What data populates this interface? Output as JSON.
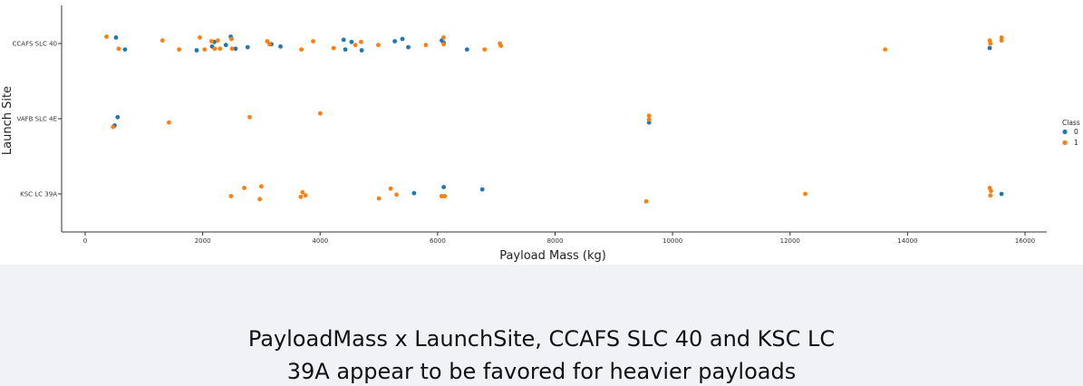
{
  "chart_data": {
    "type": "scatter",
    "xlabel": "Payload Mass (kg)",
    "ylabel": "Launch Site",
    "xlim": [
      -2000,
      16400
    ],
    "x_ticks": [
      "0",
      "2000",
      "4000",
      "6000",
      "8000",
      "10000",
      "12000",
      "14000",
      "16000"
    ],
    "x_tick_values": [
      0,
      2000,
      4000,
      6000,
      8000,
      10000,
      12000,
      14000,
      16000
    ],
    "categories": [
      "CCAFS SLC 40",
      "VAFB SLC 4E",
      "KSC LC 39A"
    ],
    "legend": {
      "title": "Class",
      "placement": "right",
      "entries": [
        {
          "label": "0",
          "color": "#1f77b4"
        },
        {
          "label": "1",
          "color": "#ff7f0e"
        }
      ]
    },
    "grid": false,
    "series": [
      {
        "name": "0",
        "color": "#1f77b4",
        "points": [
          {
            "x": 525,
            "site": "CCAFS SLC 40",
            "jitter": -0.08
          },
          {
            "x": 677,
            "site": "CCAFS SLC 40",
            "jitter": 0.08
          },
          {
            "x": 1898,
            "site": "CCAFS SLC 40",
            "jitter": 0.09
          },
          {
            "x": 2160,
            "site": "CCAFS SLC 40",
            "jitter": 0.04
          },
          {
            "x": 2200,
            "site": "CCAFS SLC 40",
            "jitter": -0.02
          },
          {
            "x": 2395,
            "site": "CCAFS SLC 40",
            "jitter": 0.02
          },
          {
            "x": 2478,
            "site": "CCAFS SLC 40",
            "jitter": -0.09
          },
          {
            "x": 2560,
            "site": "CCAFS SLC 40",
            "jitter": 0.07
          },
          {
            "x": 2765,
            "site": "CCAFS SLC 40",
            "jitter": 0.05
          },
          {
            "x": 3170,
            "site": "CCAFS SLC 40",
            "jitter": 0.01
          },
          {
            "x": 3325,
            "site": "CCAFS SLC 40",
            "jitter": 0.04
          },
          {
            "x": 4400,
            "site": "CCAFS SLC 40",
            "jitter": -0.05
          },
          {
            "x": 4428,
            "site": "CCAFS SLC 40",
            "jitter": 0.08
          },
          {
            "x": 4535,
            "site": "CCAFS SLC 40",
            "jitter": -0.02
          },
          {
            "x": 4707,
            "site": "CCAFS SLC 40",
            "jitter": 0.09
          },
          {
            "x": 5271,
            "site": "CCAFS SLC 40",
            "jitter": -0.03
          },
          {
            "x": 5400,
            "site": "CCAFS SLC 40",
            "jitter": -0.06
          },
          {
            "x": 5500,
            "site": "CCAFS SLC 40",
            "jitter": 0.05
          },
          {
            "x": 6070,
            "site": "CCAFS SLC 40",
            "jitter": -0.04
          },
          {
            "x": 6104,
            "site": "CCAFS SLC 40",
            "jitter": -0.01
          },
          {
            "x": 6500,
            "site": "CCAFS SLC 40",
            "jitter": 0.08
          },
          {
            "x": 15400,
            "site": "CCAFS SLC 40",
            "jitter": 0.06
          },
          {
            "x": 500,
            "site": "VAFB SLC 4E",
            "jitter": 0.09
          },
          {
            "x": 553,
            "site": "VAFB SLC 4E",
            "jitter": -0.02
          },
          {
            "x": 9600,
            "site": "VAFB SLC 4E",
            "jitter": 0.05
          },
          {
            "x": 5600,
            "site": "KSC LC 39A",
            "jitter": -0.01
          },
          {
            "x": 6070,
            "site": "KSC LC 39A",
            "jitter": 0.03
          },
          {
            "x": 6104,
            "site": "KSC LC 39A",
            "jitter": -0.09
          },
          {
            "x": 6761,
            "site": "KSC LC 39A",
            "jitter": -0.06
          },
          {
            "x": 15600,
            "site": "KSC LC 39A",
            "jitter": 0.0
          }
        ]
      },
      {
        "name": "1",
        "color": "#ff7f0e",
        "points": [
          {
            "x": 362,
            "site": "CCAFS SLC 40",
            "jitter": -0.09
          },
          {
            "x": 570,
            "site": "CCAFS SLC 40",
            "jitter": 0.07
          },
          {
            "x": 1316,
            "site": "CCAFS SLC 40",
            "jitter": -0.04
          },
          {
            "x": 1600,
            "site": "CCAFS SLC 40",
            "jitter": 0.08
          },
          {
            "x": 1952,
            "site": "CCAFS SLC 40",
            "jitter": -0.08
          },
          {
            "x": 2034,
            "site": "CCAFS SLC 40",
            "jitter": 0.08
          },
          {
            "x": 2150,
            "site": "CCAFS SLC 40",
            "jitter": -0.03
          },
          {
            "x": 2205,
            "site": "CCAFS SLC 40",
            "jitter": 0.07
          },
          {
            "x": 2257,
            "site": "CCAFS SLC 40",
            "jitter": -0.04
          },
          {
            "x": 2296,
            "site": "CCAFS SLC 40",
            "jitter": 0.07
          },
          {
            "x": 2500,
            "site": "CCAFS SLC 40",
            "jitter": 0.07
          },
          {
            "x": 2490,
            "site": "CCAFS SLC 40",
            "jitter": -0.06
          },
          {
            "x": 3100,
            "site": "CCAFS SLC 40",
            "jitter": -0.03
          },
          {
            "x": 3136,
            "site": "CCAFS SLC 40",
            "jitter": 0.01
          },
          {
            "x": 3681,
            "site": "CCAFS SLC 40",
            "jitter": 0.08
          },
          {
            "x": 3880,
            "site": "CCAFS SLC 40",
            "jitter": -0.03
          },
          {
            "x": 4230,
            "site": "CCAFS SLC 40",
            "jitter": 0.06
          },
          {
            "x": 4600,
            "site": "CCAFS SLC 40",
            "jitter": 0.02
          },
          {
            "x": 4696,
            "site": "CCAFS SLC 40",
            "jitter": -0.02
          },
          {
            "x": 4990,
            "site": "CCAFS SLC 40",
            "jitter": 0.02
          },
          {
            "x": 5800,
            "site": "CCAFS SLC 40",
            "jitter": 0.02
          },
          {
            "x": 6100,
            "site": "CCAFS SLC 40",
            "jitter": -0.08
          },
          {
            "x": 6104,
            "site": "CCAFS SLC 40",
            "jitter": 0.01
          },
          {
            "x": 6800,
            "site": "CCAFS SLC 40",
            "jitter": 0.08
          },
          {
            "x": 7060,
            "site": "CCAFS SLC 40",
            "jitter": 0.0
          },
          {
            "x": 7076,
            "site": "CCAFS SLC 40",
            "jitter": 0.03
          },
          {
            "x": 13620,
            "site": "CCAFS SLC 40",
            "jitter": 0.08
          },
          {
            "x": 15400,
            "site": "CCAFS SLC 40",
            "jitter": -0.04
          },
          {
            "x": 15410,
            "site": "CCAFS SLC 40",
            "jitter": 0.0
          },
          {
            "x": 15600,
            "site": "CCAFS SLC 40",
            "jitter": -0.08
          },
          {
            "x": 15600,
            "site": "CCAFS SLC 40",
            "jitter": -0.04
          },
          {
            "x": 475,
            "site": "VAFB SLC 4E",
            "jitter": 0.11
          },
          {
            "x": 1425,
            "site": "VAFB SLC 4E",
            "jitter": 0.05
          },
          {
            "x": 2800,
            "site": "VAFB SLC 4E",
            "jitter": -0.02
          },
          {
            "x": 4000,
            "site": "VAFB SLC 4E",
            "jitter": -0.07
          },
          {
            "x": 9600,
            "site": "VAFB SLC 4E",
            "jitter": -0.04
          },
          {
            "x": 9600,
            "site": "VAFB SLC 4E",
            "jitter": 0.01
          },
          {
            "x": 2482,
            "site": "KSC LC 39A",
            "jitter": 0.03
          },
          {
            "x": 2708,
            "site": "KSC LC 39A",
            "jitter": -0.08
          },
          {
            "x": 2972,
            "site": "KSC LC 39A",
            "jitter": 0.07
          },
          {
            "x": 3000,
            "site": "KSC LC 39A",
            "jitter": -0.1
          },
          {
            "x": 3669,
            "site": "KSC LC 39A",
            "jitter": 0.04
          },
          {
            "x": 3700,
            "site": "KSC LC 39A",
            "jitter": -0.02
          },
          {
            "x": 3750,
            "site": "KSC LC 39A",
            "jitter": 0.02
          },
          {
            "x": 5000,
            "site": "KSC LC 39A",
            "jitter": 0.06
          },
          {
            "x": 5200,
            "site": "KSC LC 39A",
            "jitter": -0.07
          },
          {
            "x": 5300,
            "site": "KSC LC 39A",
            "jitter": 0.01
          },
          {
            "x": 6070,
            "site": "KSC LC 39A",
            "jitter": 0.03
          },
          {
            "x": 6120,
            "site": "KSC LC 39A",
            "jitter": 0.03
          },
          {
            "x": 9550,
            "site": "KSC LC 39A",
            "jitter": 0.1
          },
          {
            "x": 12259,
            "site": "KSC LC 39A",
            "jitter": 0.0
          },
          {
            "x": 15400,
            "site": "KSC LC 39A",
            "jitter": -0.08
          },
          {
            "x": 15410,
            "site": "KSC LC 39A",
            "jitter": 0.02
          },
          {
            "x": 15420,
            "site": "KSC LC 39A",
            "jitter": -0.04
          }
        ]
      }
    ]
  },
  "caption": {
    "line1": "PayloadMass x LaunchSite, CCAFS SLC 40 and KSC LC",
    "line2": "39A appear to be favored for heavier payloads"
  }
}
